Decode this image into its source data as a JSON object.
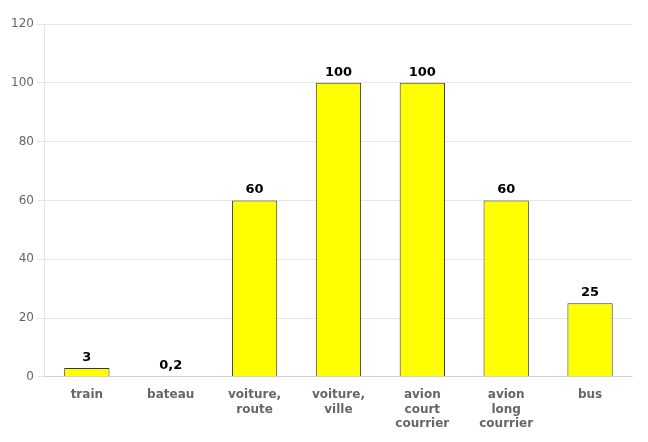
{
  "chart_data": {
    "type": "bar",
    "categories": [
      "train",
      "bateau",
      "voiture,\nroute",
      "voiture,\nville",
      "avion\ncourt\ncourrier",
      "avion\nlong\ncourrier",
      "bus"
    ],
    "values": [
      3,
      0.2,
      60,
      100,
      100,
      60,
      25
    ],
    "value_labels": [
      "3",
      "0,2",
      "60",
      "100",
      "100",
      "60",
      "25"
    ],
    "data_labels": true,
    "color": "#FFFF00",
    "ylim": [
      0,
      120
    ],
    "yticks": [
      0,
      20,
      40,
      60,
      80,
      100,
      120
    ],
    "grid": true
  }
}
